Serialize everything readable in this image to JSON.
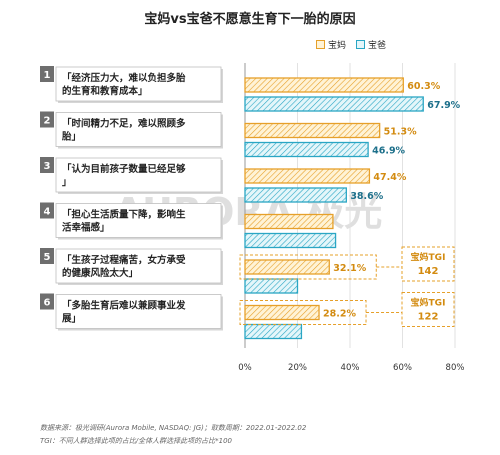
{
  "title": "宝妈vs宝爸不愿意生育下一胎的原因",
  "colors": {
    "mom_fill": "#fff3d6",
    "mom_stroke": "#e6a02a",
    "mom_label": "#d38b10",
    "dad_fill": "#e4f6fa",
    "dad_stroke": "#2aa6c4",
    "dad_label": "#1c6f8a",
    "number_box": "#6e6e6e",
    "watermark": "#dfdfdf"
  },
  "watermark": "AURORA 极光",
  "footer": {
    "source": "数据来源：极光调研(Aurora Mobile, NASDAQ: JG)；取数周期：2022.01-2022.02",
    "tgi_note": "TGI：不同人群选择此项的占比/全体人群选择此项的占比*100"
  },
  "chart_data": {
    "type": "bar",
    "orientation": "horizontal",
    "title": "宝妈vs宝爸不愿意生育下一胎的原因",
    "legend": {
      "position": "top-right",
      "entries": [
        "宝妈",
        "宝爸"
      ]
    },
    "xlim": [
      0,
      80
    ],
    "xticks": [
      "0%",
      "20%",
      "40%",
      "60%",
      "80%"
    ],
    "categories": [
      {
        "num": "1",
        "text": "「经济压力大，难以负担多胎的生育和教育成本」"
      },
      {
        "num": "2",
        "text": "「时间精力不足，难以照顾多胎」"
      },
      {
        "num": "3",
        "text": "「认为目前孩子数量已经足够」"
      },
      {
        "num": "4",
        "text": "「担心生活质量下降，影响生活幸福感」"
      },
      {
        "num": "5",
        "text": "「生孩子过程痛苦，女方承受的健康风险太大」"
      },
      {
        "num": "6",
        "text": "「多胎生育后难以兼顾事业发展」"
      }
    ],
    "series": [
      {
        "name": "宝妈",
        "values": [
          60.3,
          51.3,
          47.4,
          33.5,
          32.1,
          28.2
        ],
        "labels": [
          "60.3%",
          "51.3%",
          "47.4%",
          "",
          "32.1%",
          "28.2%"
        ]
      },
      {
        "name": "宝爸",
        "values": [
          67.9,
          46.9,
          38.6,
          34.5,
          20.0,
          21.5
        ],
        "labels": [
          "67.9%",
          "46.9%",
          "38.6%",
          "",
          "",
          ""
        ]
      }
    ],
    "tgi_callouts": [
      {
        "category_index": 4,
        "label": "宝妈TGI",
        "value": "142"
      },
      {
        "category_index": 5,
        "label": "宝妈TGI",
        "value": "122"
      }
    ]
  }
}
